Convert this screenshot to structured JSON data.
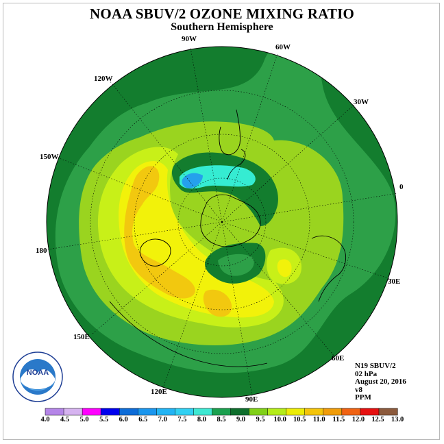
{
  "header": {
    "title": "NOAA SBUV/2 OZONE MIXING RATIO",
    "subtitle": "Southern Hemisphere"
  },
  "longitude_labels": {
    "90w": "90W",
    "60w": "60W",
    "30w": "30W",
    "120w": "120W",
    "150w": "150W",
    "0": "0",
    "180": "180",
    "30e": "30E",
    "150e": "150E",
    "60e": "60E",
    "120e": "120E",
    "90e": "90E"
  },
  "info": {
    "instrument": "N19 SBUV/2",
    "level": "02 hPa",
    "date": "August 20, 2016",
    "version": "v8",
    "units": "PPM"
  },
  "logo": {
    "text": "NOAA"
  },
  "colorbar": {
    "ticks": [
      "4.0",
      "4.5",
      "5.0",
      "5.5",
      "6.0",
      "6.5",
      "7.0",
      "7.5",
      "8.0",
      "8.5",
      "9.0",
      "9.5",
      "10.0",
      "10.5",
      "11.0",
      "11.5",
      "12.0",
      "12.5",
      "13.0"
    ],
    "colors": [
      "#b585e8",
      "#d6b3f0",
      "#ff00ff",
      "#0000ee",
      "#0d6cd8",
      "#1a96ee",
      "#22b4f4",
      "#30d0f2",
      "#3ee8d2",
      "#1aa04e",
      "#0e6e2c",
      "#80d018",
      "#b4ec1a",
      "#ecec06",
      "#f4c40a",
      "#f09c0a",
      "#f06212",
      "#e61010",
      "#8c5a3c"
    ]
  },
  "map_colors": {
    "dark_green": "#137d2e",
    "mid_green": "#2da048",
    "lime": "#9ad41f",
    "yellow_green": "#c8f018",
    "yellow": "#f2f20a",
    "gold": "#f2c80f",
    "cyan": "#35ecd2",
    "blue": "#25a0ec"
  }
}
